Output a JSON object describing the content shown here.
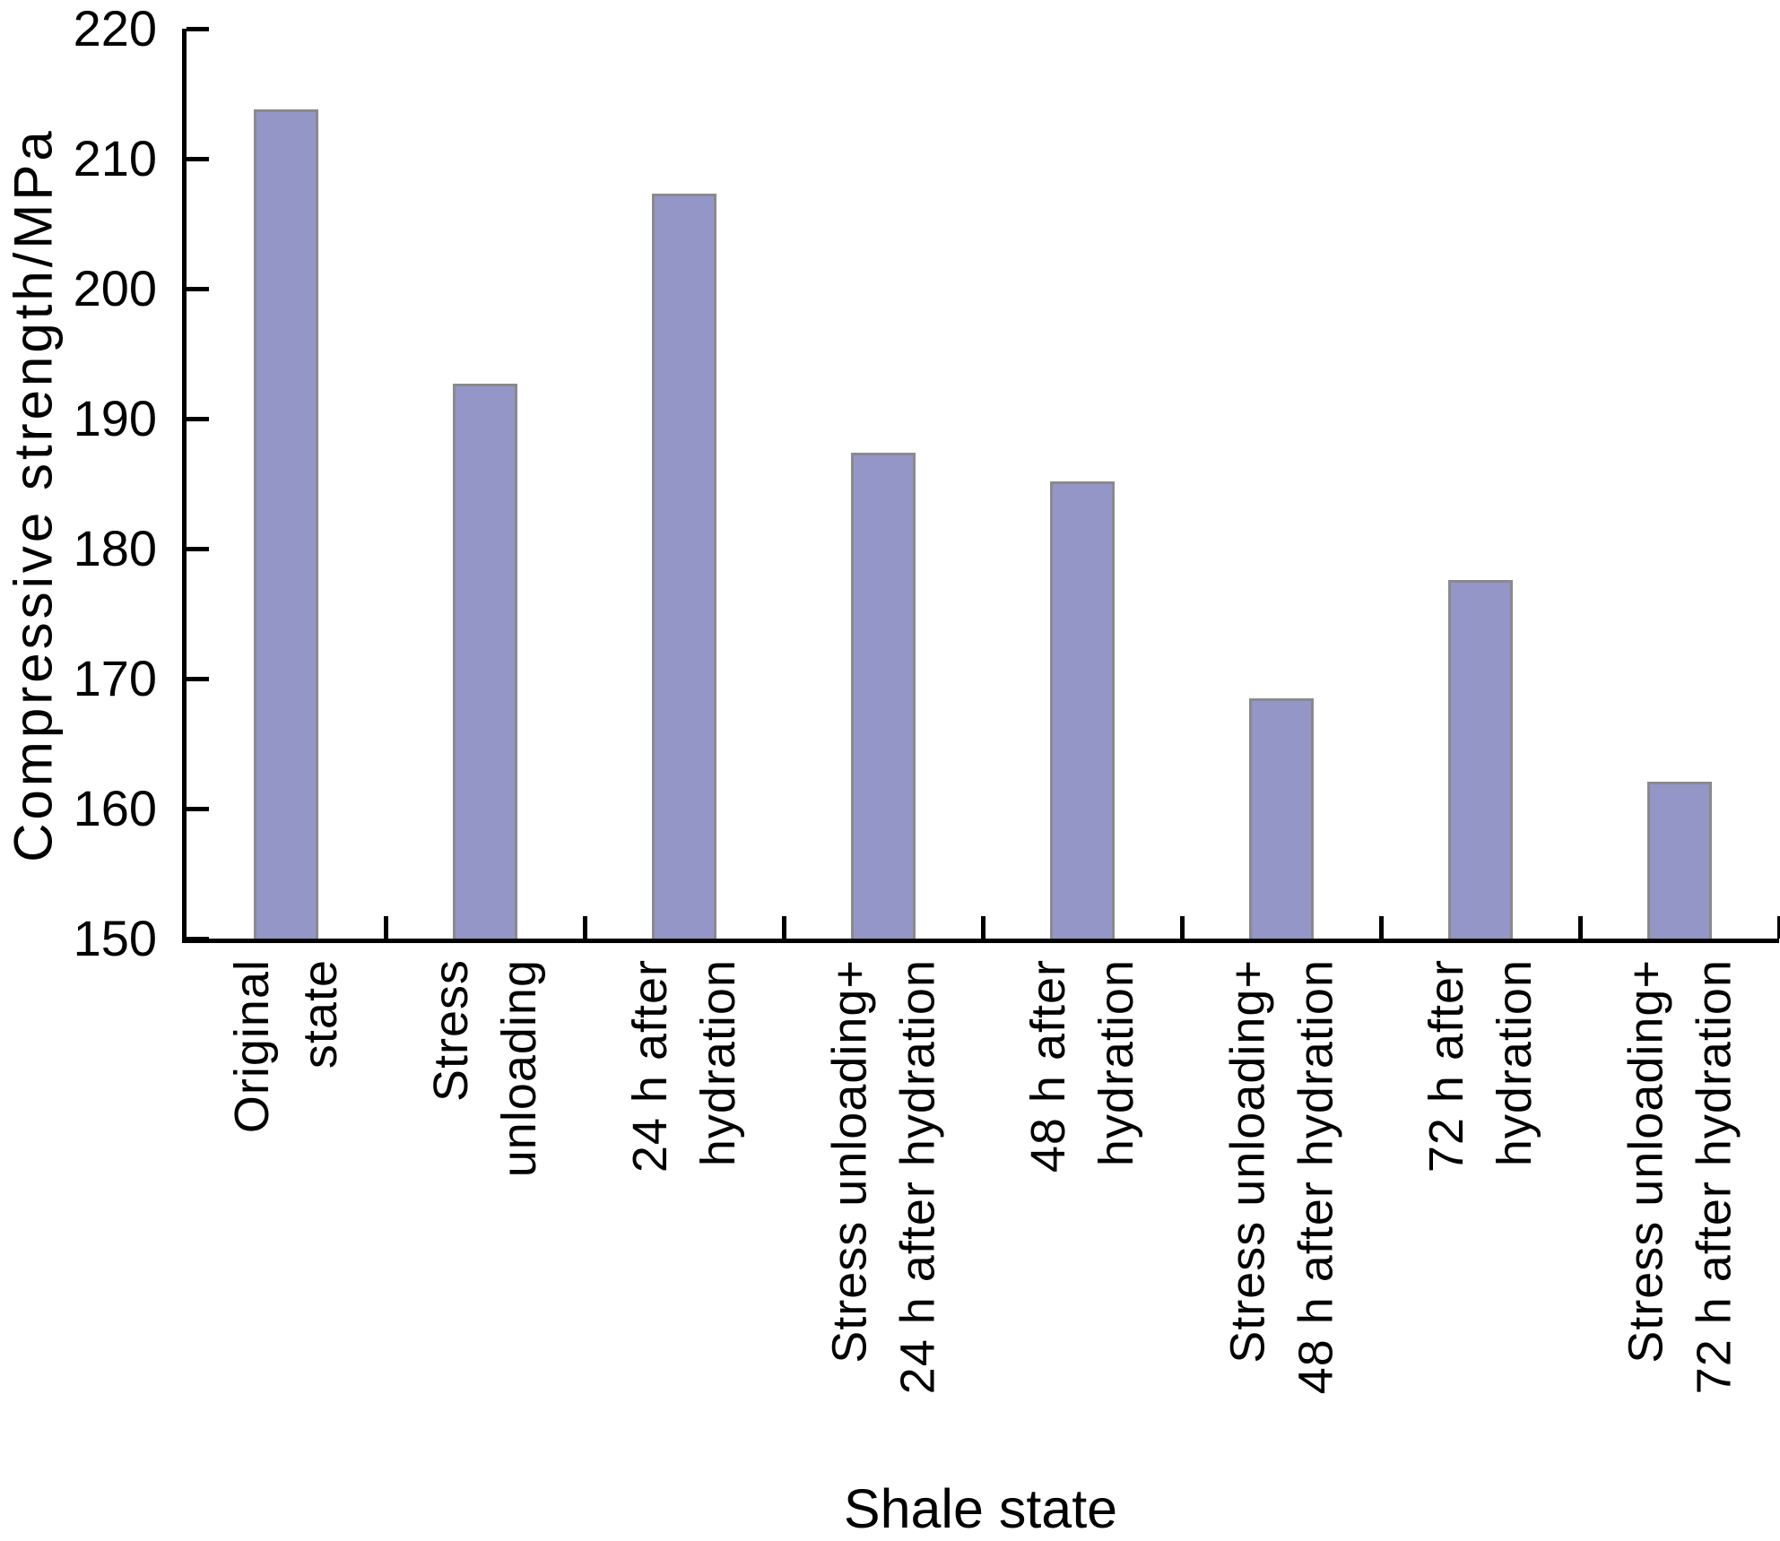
{
  "chart_data": {
    "type": "bar",
    "title": "",
    "xlabel": "Shale state",
    "ylabel": "Compressive strength/MPa",
    "categories": [
      "Original state",
      "Stress unloading",
      "24 h after hydration",
      "Stress unloading+ 24 h after hydration",
      "48 h after hydration",
      "Stress unloading+ 48 h after hydration",
      "72 h after hydration",
      "Stress unloading+ 72 h after hydration"
    ],
    "category_lines": [
      [
        "Original",
        "state"
      ],
      [
        "Stress",
        "unloading"
      ],
      [
        "24 h after",
        "hydration"
      ],
      [
        "Stress unloading+",
        "24 h after hydration"
      ],
      [
        "48 h after",
        "hydration"
      ],
      [
        "Stress unloading+",
        "48 h after hydration"
      ],
      [
        "72 h after",
        "hydration"
      ],
      [
        "Stress unloading+",
        "72 h after hydration"
      ]
    ],
    "values": [
      213.8,
      192.7,
      207.3,
      187.4,
      185.2,
      168.5,
      177.6,
      162.1
    ],
    "ylim": [
      150,
      220
    ],
    "yticks": [
      150,
      160,
      170,
      180,
      190,
      200,
      210,
      220
    ],
    "grid": false,
    "legend": "none",
    "bar_fill_color": "#9496c8",
    "bar_border_color": "#8a8a8a",
    "axis_color": "#000000",
    "text_color": "#000000"
  }
}
